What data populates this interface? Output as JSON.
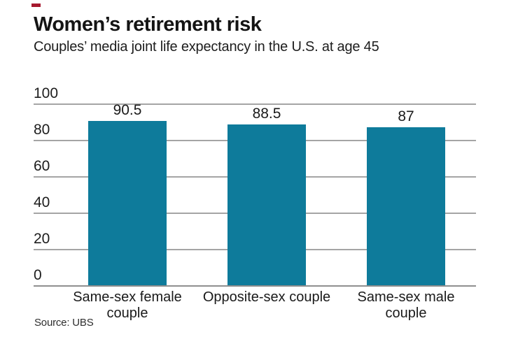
{
  "accent": {
    "dash_color": "#a6192e"
  },
  "header": {
    "title": "Women’s retirement risk",
    "subtitle": "Couples’ media joint life expectancy in the U.S. at age 45"
  },
  "chart_data": {
    "type": "bar",
    "title": "Women’s retirement risk",
    "subtitle": "Couples’ media joint life expectancy in the U.S. at age 45",
    "categories": [
      "Same-sex female couple",
      "Opposite-sex couple",
      "Same-sex male couple"
    ],
    "values": [
      90.5,
      88.5,
      87
    ],
    "value_labels": [
      "90.5",
      "88.5",
      "87"
    ],
    "yticks": [
      100,
      80,
      60,
      40,
      20,
      0
    ],
    "ylim": [
      0,
      100
    ],
    "grid": true,
    "legend": false,
    "xlabel": "",
    "ylabel": "",
    "bar_color": "#0e7b9b",
    "gridline_color": "#a5a5a5"
  },
  "footer": {
    "source": "Source: UBS"
  }
}
